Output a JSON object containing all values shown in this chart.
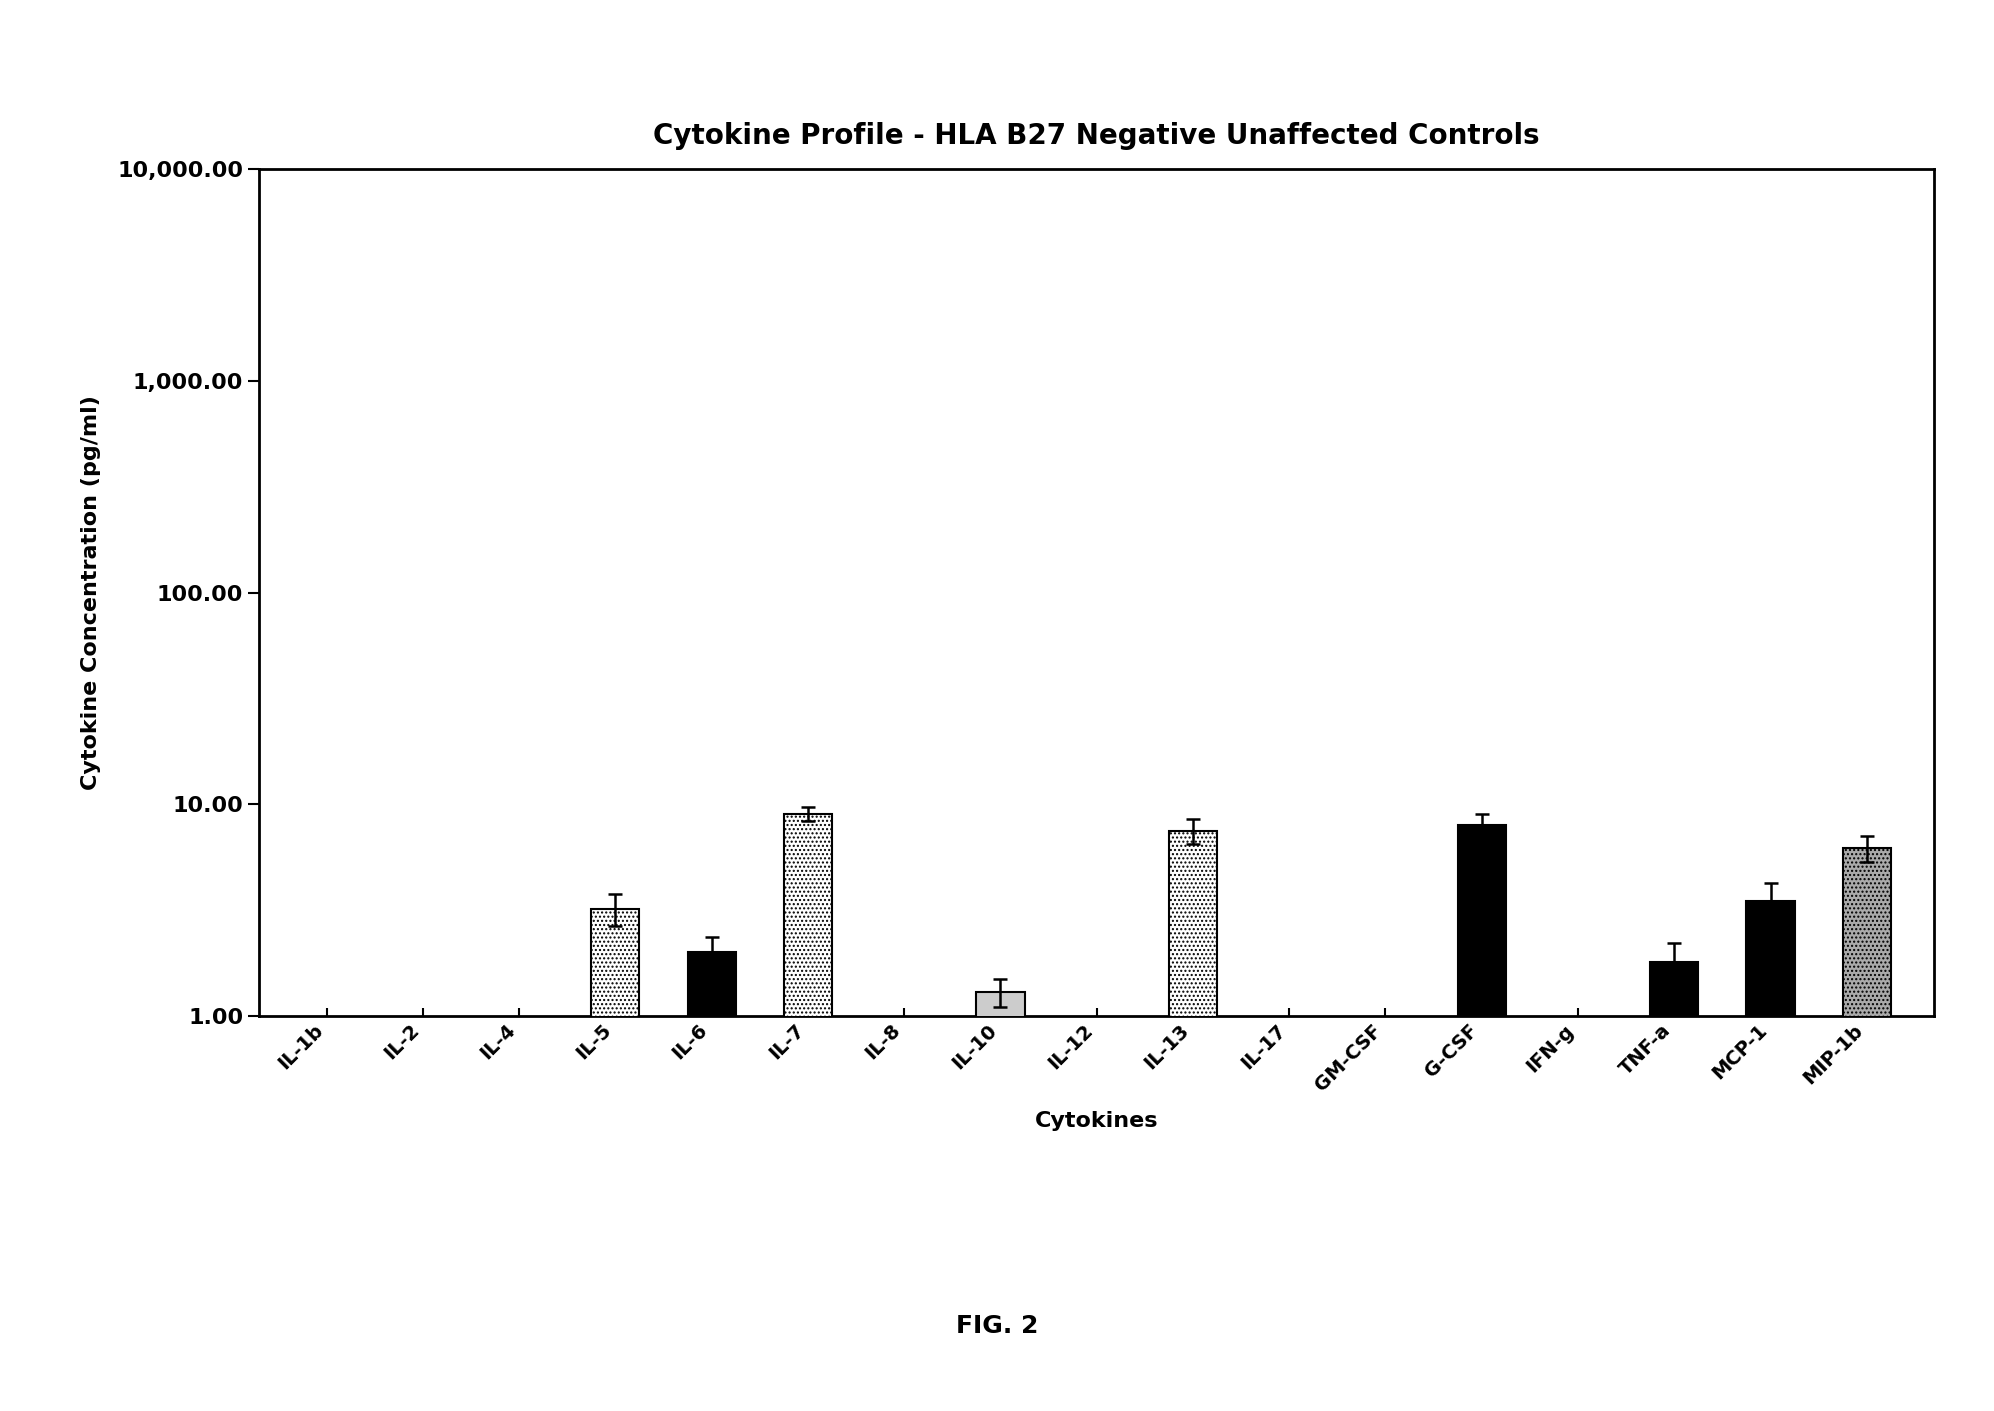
{
  "title": "Cytokine Profile - HLA B27 Negative Unaffected Controls",
  "xlabel": "Cytokines",
  "ylabel": "Cytokine Concentration (pg/ml)",
  "categories": [
    "IL-1b",
    "IL-2",
    "IL-4",
    "IL-5",
    "IL-6",
    "IL-7",
    "IL-8",
    "IL-10",
    "IL-12",
    "IL-13",
    "IL-17",
    "GM-CSF",
    "G-CSF",
    "IFN-g",
    "TNF-a",
    "MCP-1",
    "MIP-1b"
  ],
  "values": [
    null,
    null,
    null,
    3.2,
    2.0,
    9.0,
    null,
    1.3,
    null,
    7.5,
    null,
    null,
    8.0,
    null,
    1.8,
    3.5,
    6.2
  ],
  "errors": [
    null,
    null,
    null,
    0.55,
    0.35,
    0.7,
    null,
    0.2,
    null,
    1.0,
    null,
    null,
    0.95,
    null,
    0.4,
    0.75,
    0.85
  ],
  "bar_styles": [
    {
      "color": "white",
      "edgecolor": "black",
      "hatch": "...."
    },
    {
      "color": "white",
      "edgecolor": "black",
      "hatch": "...."
    },
    {
      "color": "white",
      "edgecolor": "black",
      "hatch": "...."
    },
    {
      "color": "white",
      "edgecolor": "black",
      "hatch": "...."
    },
    {
      "color": "black",
      "edgecolor": "black",
      "hatch": ""
    },
    {
      "color": "white",
      "edgecolor": "black",
      "hatch": "...."
    },
    {
      "color": "white",
      "edgecolor": "black",
      "hatch": "...."
    },
    {
      "color": "#cccccc",
      "edgecolor": "black",
      "hatch": ""
    },
    {
      "color": "white",
      "edgecolor": "black",
      "hatch": "...."
    },
    {
      "color": "white",
      "edgecolor": "black",
      "hatch": "...."
    },
    {
      "color": "white",
      "edgecolor": "black",
      "hatch": "...."
    },
    {
      "color": "white",
      "edgecolor": "black",
      "hatch": "...."
    },
    {
      "color": "black",
      "edgecolor": "black",
      "hatch": ""
    },
    {
      "color": "white",
      "edgecolor": "black",
      "hatch": "...."
    },
    {
      "color": "black",
      "edgecolor": "black",
      "hatch": ""
    },
    {
      "color": "black",
      "edgecolor": "black",
      "hatch": ""
    },
    {
      "color": "#aaaaaa",
      "edgecolor": "black",
      "hatch": "...."
    }
  ],
  "ylim_min": 1.0,
  "ylim_max": 10000.0,
  "yticks": [
    1.0,
    10.0,
    100.0,
    1000.0,
    10000.0
  ],
  "ytick_labels": [
    "1.00",
    "10.00",
    "100.00",
    "1,000.00",
    "10,000.00"
  ],
  "fig_caption": "FIG. 2",
  "background_color": "#ffffff",
  "title_fontsize": 20,
  "axis_label_fontsize": 16,
  "tick_fontsize": 14,
  "ytick_fontsize": 16,
  "bar_width": 0.5,
  "caption_fontsize": 18
}
